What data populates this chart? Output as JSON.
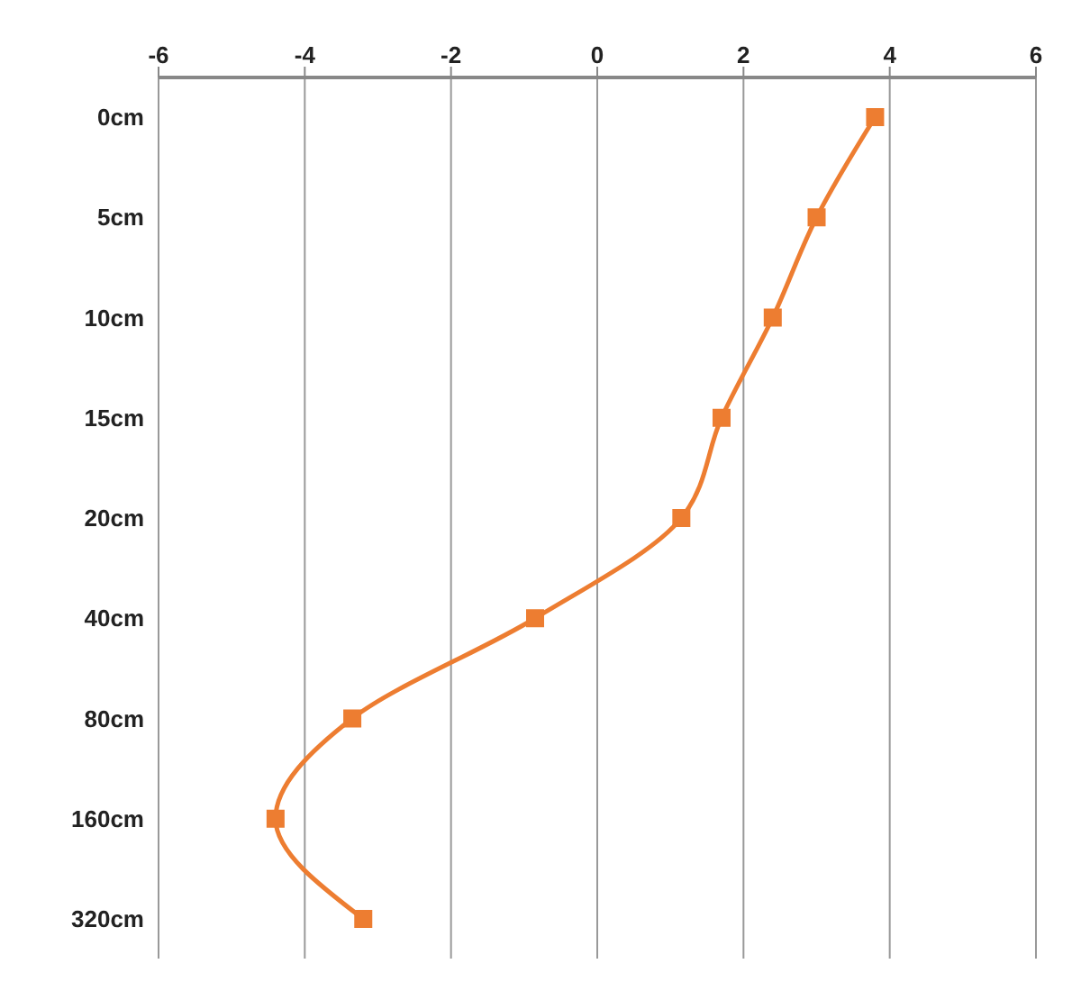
{
  "chart_data": {
    "type": "line",
    "orientation": "horizontal",
    "categories": [
      "0cm",
      "5cm",
      "10cm",
      "15cm",
      "20cm",
      "40cm",
      "80cm",
      "160cm",
      "320cm"
    ],
    "series": [
      {
        "color": "#ed7d31",
        "values": [
          3.8,
          3.0,
          2.4,
          1.7,
          1.15,
          -0.85,
          -3.35,
          -4.4,
          -3.2
        ]
      }
    ],
    "xlim": [
      -6,
      6
    ],
    "xticks": [
      -6,
      -4,
      -2,
      0,
      2,
      4,
      6
    ],
    "grid": "x",
    "marker": "square"
  }
}
